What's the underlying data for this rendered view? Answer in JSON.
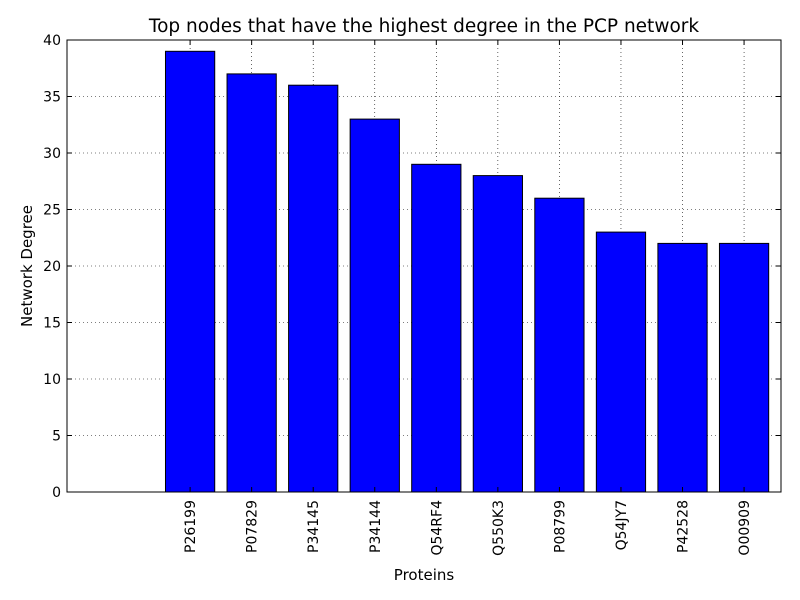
{
  "chart_data": {
    "type": "bar",
    "title": "Top nodes that have the highest degree in the PCP network",
    "xlabel": "Proteins",
    "ylabel": "Network Degree",
    "categories": [
      "P26199",
      "P07829",
      "P34145",
      "P34144",
      "Q54RF4",
      "Q550K3",
      "P08799",
      "Q54JY7",
      "P42528",
      "O00909"
    ],
    "values": [
      39,
      37,
      36,
      33,
      29,
      28,
      26,
      23,
      22,
      22
    ],
    "ylim": [
      0,
      40
    ],
    "yticks": [
      0,
      5,
      10,
      15,
      20,
      25,
      30,
      35,
      40
    ],
    "grid": true,
    "bar_color": "#0000ff",
    "edge_color": "#000000"
  }
}
